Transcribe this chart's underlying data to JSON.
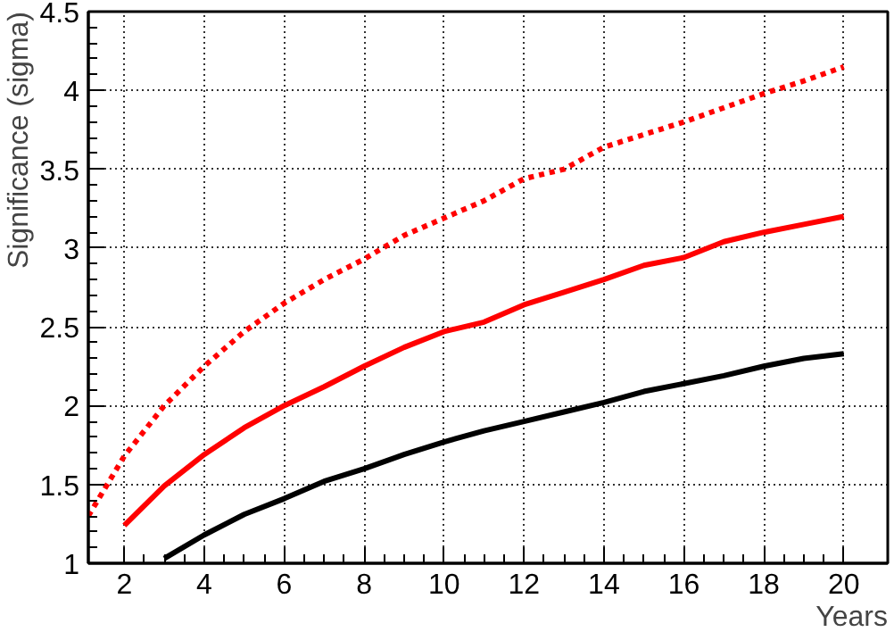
{
  "chart_data": {
    "type": "line",
    "xlabel": "Years",
    "ylabel": "Significance (sigma)",
    "xlim": [
      1.1,
      21.1
    ],
    "ylim": [
      1,
      4.5
    ],
    "xticks": [
      2,
      4,
      6,
      8,
      10,
      12,
      14,
      16,
      18,
      20
    ],
    "yticks": [
      1,
      1.5,
      2,
      2.5,
      3,
      3.5,
      4,
      4.5
    ],
    "grid": true,
    "series": [
      {
        "color": "#ff0000",
        "line_style": "dotted",
        "x": [
          1.1,
          2,
          3,
          4,
          5,
          6,
          7,
          8,
          9,
          10,
          11,
          12,
          13,
          14,
          15,
          16,
          17,
          18,
          19,
          20
        ],
        "values": [
          1.3,
          1.68,
          2.0,
          2.25,
          2.47,
          2.65,
          2.8,
          2.93,
          3.08,
          3.19,
          3.3,
          3.44,
          3.5,
          3.64,
          3.72,
          3.8,
          3.89,
          3.98,
          4.06,
          4.15
        ]
      },
      {
        "color": "#ff0000",
        "line_style": "solid",
        "x": [
          2,
          3,
          4,
          5,
          6,
          7,
          8,
          9,
          10,
          11,
          12,
          13,
          14,
          15,
          16,
          17,
          18,
          19,
          20
        ],
        "values": [
          1.24,
          1.49,
          1.69,
          1.86,
          2.0,
          2.12,
          2.25,
          2.37,
          2.47,
          2.53,
          2.64,
          2.72,
          2.8,
          2.89,
          2.94,
          3.04,
          3.1,
          3.15,
          3.2
        ]
      },
      {
        "color": "#000000",
        "line_style": "solid",
        "x": [
          3,
          4,
          5,
          6,
          7,
          8,
          9,
          10,
          11,
          12,
          13,
          14,
          15,
          16,
          17,
          18,
          19,
          20
        ],
        "values": [
          1.03,
          1.18,
          1.31,
          1.41,
          1.52,
          1.6,
          1.69,
          1.77,
          1.84,
          1.9,
          1.96,
          2.02,
          2.09,
          2.14,
          2.19,
          2.25,
          2.3,
          2.33
        ]
      }
    ]
  }
}
